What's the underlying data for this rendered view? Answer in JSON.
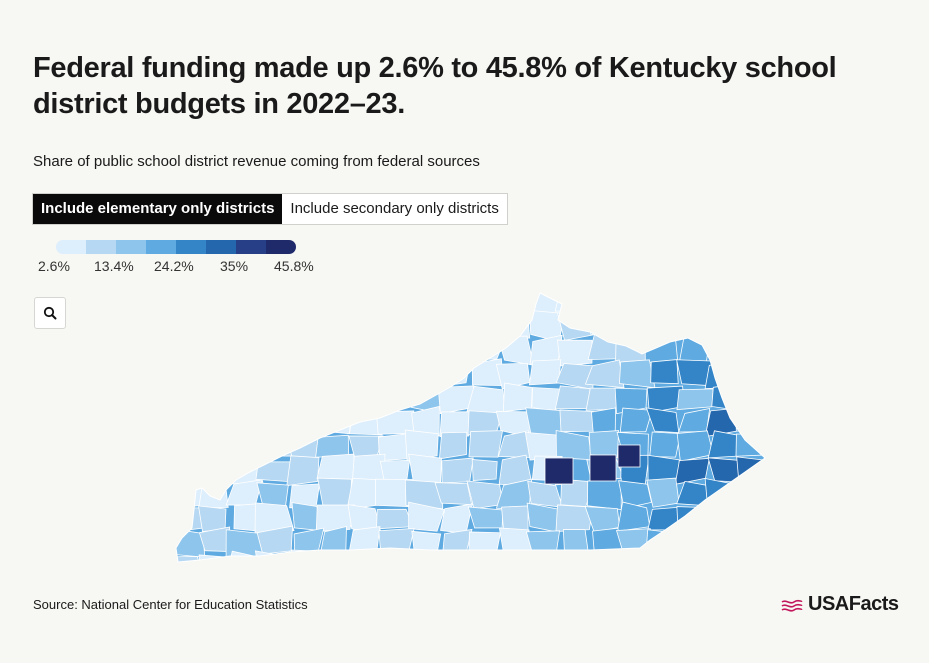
{
  "header": {
    "title": "Federal funding made up 2.6% to 45.8% of Kentucky school district budgets in 2022–23.",
    "subtitle": "Share of public school district revenue coming from federal sources"
  },
  "toggle": {
    "options": [
      "Include elementary only districts",
      "Include secondary only districts"
    ],
    "selected": "Include elementary only districts"
  },
  "legend": {
    "labels": [
      "2.6%",
      "13.4%",
      "24.2%",
      "35%",
      "45.8%"
    ],
    "colors": [
      "#ddeefc",
      "#b6d8f2",
      "#8ec5ec",
      "#5eaae1",
      "#3385c8",
      "#2467ad",
      "#263f86",
      "#1e2a6a"
    ]
  },
  "zoom": {
    "icon": "search-icon"
  },
  "map": {
    "region": "Kentucky",
    "color_scale_range": [
      "2.6%",
      "45.8%"
    ]
  },
  "footer": {
    "source": "Source: National Center for Education Statistics",
    "brand": "USAFacts",
    "brand_color": "#c2185b"
  }
}
